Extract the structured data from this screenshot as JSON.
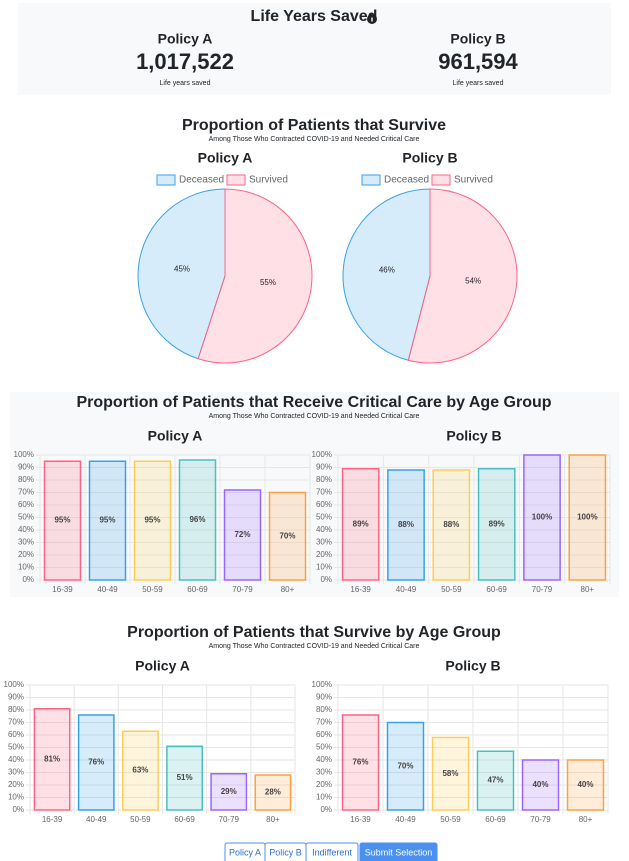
{
  "summary": {
    "title": "Life Years Saved",
    "policies": [
      {
        "name": "Policy A",
        "value": "1,017,522",
        "caption": "Life years saved"
      },
      {
        "name": "Policy B",
        "value": "961,594",
        "caption": "Life years saved"
      }
    ]
  },
  "sections": [
    {
      "title": "Proportion of Patients that Survive",
      "subtitle": "Among Those Who Contracted COVID-19 and Needed Critical Care"
    },
    {
      "title": "Proportion of Patients that Receive Critical Care by Age Group",
      "subtitle": "Among Those Who Contracted COVID-19 and Needed Critical Care"
    },
    {
      "title": "Proportion of Patients that Survive by Age Group",
      "subtitle": "Among Those Who Contracted COVID-19 and Needed Critical Care"
    }
  ],
  "chart_data": [
    {
      "type": "pie",
      "title": "Policy A",
      "categories": [
        "Deceased",
        "Survived"
      ],
      "values": [
        45,
        55
      ],
      "value_labels": [
        "45%",
        "55%"
      ],
      "colors": [
        "#36a2eb",
        "#ff6384"
      ],
      "legend": "top"
    },
    {
      "type": "pie",
      "title": "Policy B",
      "categories": [
        "Deceased",
        "Survived"
      ],
      "values": [
        46,
        54
      ],
      "value_labels": [
        "46%",
        "54%"
      ],
      "colors": [
        "#36a2eb",
        "#ff6384"
      ],
      "legend": "top"
    },
    {
      "type": "bar",
      "title": "Policy A",
      "categories": [
        "16-39",
        "40-49",
        "50-59",
        "60-69",
        "70-79",
        "80+"
      ],
      "values": [
        95,
        95,
        95,
        96,
        72,
        70
      ],
      "value_labels": [
        "95%",
        "95%",
        "95%",
        "96%",
        "72%",
        "70%"
      ],
      "colors": [
        "#ff6384",
        "#36a2eb",
        "#ffcd56",
        "#4bc0c0",
        "#9966ff",
        "#ff9f40"
      ],
      "ylim": [
        0,
        100
      ],
      "yticks": [
        {
          "value": 0,
          "label": "0%"
        },
        {
          "value": 10,
          "label": "10%"
        },
        {
          "value": 20,
          "label": "20%"
        },
        {
          "value": 30,
          "label": "30%"
        },
        {
          "value": 40,
          "label": "40%"
        },
        {
          "value": 50,
          "label": "50%"
        },
        {
          "value": 60,
          "label": "60%"
        },
        {
          "value": 70,
          "label": "70%"
        },
        {
          "value": 80,
          "label": "80%"
        },
        {
          "value": 90,
          "label": "90%"
        },
        {
          "value": 100,
          "label": "100%"
        }
      ],
      "grid": true
    },
    {
      "type": "bar",
      "title": "Policy B",
      "categories": [
        "16-39",
        "40-49",
        "50-59",
        "60-69",
        "70-79",
        "80+"
      ],
      "values": [
        89,
        88,
        88,
        89,
        100,
        100
      ],
      "value_labels": [
        "89%",
        "88%",
        "88%",
        "89%",
        "100%",
        "100%"
      ],
      "colors": [
        "#ff6384",
        "#36a2eb",
        "#ffcd56",
        "#4bc0c0",
        "#9966ff",
        "#ff9f40"
      ],
      "ylim": [
        0,
        100
      ],
      "yticks": [
        {
          "value": 0,
          "label": "0%"
        },
        {
          "value": 10,
          "label": "10%"
        },
        {
          "value": 20,
          "label": "20%"
        },
        {
          "value": 30,
          "label": "30%"
        },
        {
          "value": 40,
          "label": "40%"
        },
        {
          "value": 50,
          "label": "50%"
        },
        {
          "value": 60,
          "label": "60%"
        },
        {
          "value": 70,
          "label": "70%"
        },
        {
          "value": 80,
          "label": "80%"
        },
        {
          "value": 90,
          "label": "90%"
        },
        {
          "value": 100,
          "label": "100%"
        }
      ],
      "grid": true
    },
    {
      "type": "bar",
      "title": "Policy A",
      "categories": [
        "16-39",
        "40-49",
        "50-59",
        "60-69",
        "70-79",
        "80+"
      ],
      "values": [
        81,
        76,
        63,
        51,
        29,
        28
      ],
      "value_labels": [
        "81%",
        "76%",
        "63%",
        "51%",
        "29%",
        "28%"
      ],
      "colors": [
        "#ff6384",
        "#36a2eb",
        "#ffcd56",
        "#4bc0c0",
        "#9966ff",
        "#ff9f40"
      ],
      "ylim": [
        0,
        100
      ],
      "yticks": [
        {
          "value": 0,
          "label": "0%"
        },
        {
          "value": 10,
          "label": "10%"
        },
        {
          "value": 20,
          "label": "20%"
        },
        {
          "value": 30,
          "label": "30%"
        },
        {
          "value": 40,
          "label": "40%"
        },
        {
          "value": 50,
          "label": "50%"
        },
        {
          "value": 60,
          "label": "60%"
        },
        {
          "value": 70,
          "label": "70%"
        },
        {
          "value": 80,
          "label": "80%"
        },
        {
          "value": 90,
          "label": "90%"
        },
        {
          "value": 100,
          "label": "100%"
        }
      ],
      "grid": true
    },
    {
      "type": "bar",
      "title": "Policy B",
      "categories": [
        "16-39",
        "40-49",
        "50-59",
        "60-69",
        "70-79",
        "80+"
      ],
      "values": [
        76,
        70,
        58,
        47,
        40,
        40
      ],
      "value_labels": [
        "76%",
        "70%",
        "58%",
        "47%",
        "40%",
        "40%"
      ],
      "colors": [
        "#ff6384",
        "#36a2eb",
        "#ffcd56",
        "#4bc0c0",
        "#9966ff",
        "#ff9f40"
      ],
      "ylim": [
        0,
        100
      ],
      "yticks": [
        {
          "value": 0,
          "label": "0%"
        },
        {
          "value": 10,
          "label": "10%"
        },
        {
          "value": 20,
          "label": "20%"
        },
        {
          "value": 30,
          "label": "30%"
        },
        {
          "value": 40,
          "label": "40%"
        },
        {
          "value": 50,
          "label": "50%"
        },
        {
          "value": 60,
          "label": "60%"
        },
        {
          "value": 70,
          "label": "70%"
        },
        {
          "value": 80,
          "label": "80%"
        },
        {
          "value": 90,
          "label": "90%"
        },
        {
          "value": 100,
          "label": "100%"
        }
      ],
      "grid": true
    }
  ],
  "buttons": [
    "Policy A",
    "Policy B",
    "Indifferent",
    "Submit Selection"
  ]
}
